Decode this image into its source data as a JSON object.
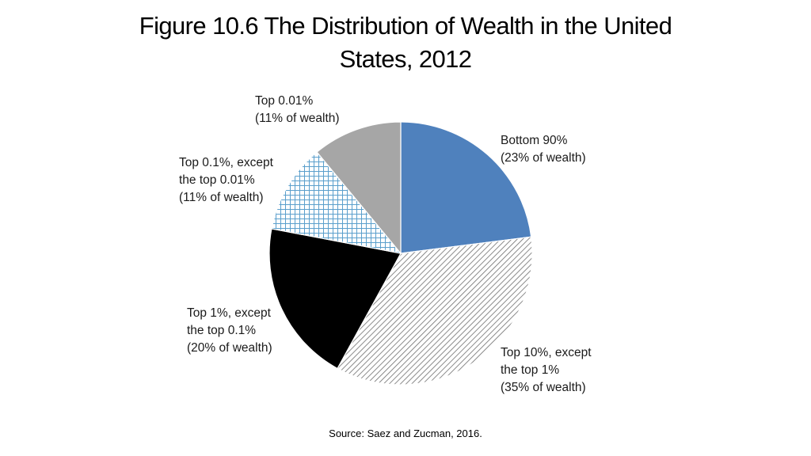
{
  "slide": {
    "title_line1": "Figure 10.6 The Distribution of Wealth in the United",
    "title_line2": "States, 2012",
    "source": "Source: Saez and Zucman, 2016."
  },
  "chart_data": {
    "type": "pie",
    "title": "Figure 10.6 The Distribution of Wealth in the United States, 2012",
    "start_angle_deg": 0,
    "direction": "clockwise",
    "slices": [
      {
        "name": "Bottom 90%",
        "value": 23,
        "label_lines": [
          "Bottom 90%",
          "(23% of wealth)"
        ],
        "fill": "solid",
        "color": "#4f81bd"
      },
      {
        "name": "Top 10%, except the top 1%",
        "value": 35,
        "label_lines": [
          "Top 10%, except",
          "the top 1%",
          "(35% of wealth)"
        ],
        "fill": "diagonal-hatch",
        "color": "#6e6e6e"
      },
      {
        "name": "Top 1%, except the top 0.1%",
        "value": 20,
        "label_lines": [
          "Top 1%, except",
          "the top 0.1%",
          "(20% of wealth)"
        ],
        "fill": "solid",
        "color": "#000000"
      },
      {
        "name": "Top 0.1%, except the top 0.01%",
        "value": 11,
        "label_lines": [
          "Top 0.1%, except",
          "the top 0.01%",
          "(11% of wealth)"
        ],
        "fill": "grid-hatch",
        "color": "#5a9fcc"
      },
      {
        "name": "Top 0.01%",
        "value": 11,
        "label_lines": [
          "Top 0.01%",
          "(11% of wealth)"
        ],
        "fill": "solid",
        "color": "#a6a6a6"
      }
    ],
    "legend": "none",
    "source": "Saez and Zucman, 2016"
  }
}
